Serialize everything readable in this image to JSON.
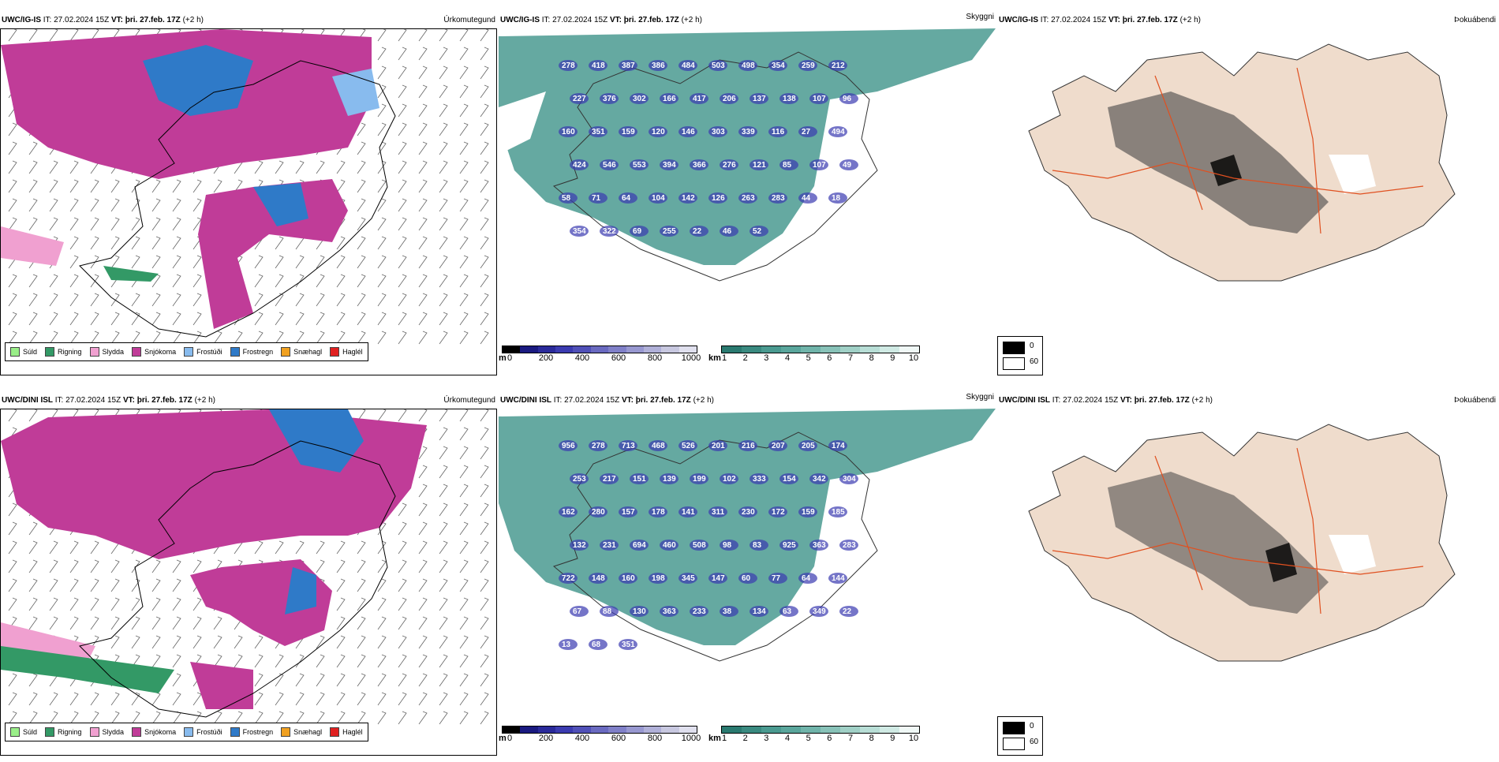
{
  "rows": [
    {
      "model": "UWC/IG-IS",
      "it_label": "IT:",
      "it_value": "27.02.2024 15Z",
      "vt_label": "VT:",
      "vt_value": "þri. 27.feb. 17Z",
      "lead": "(+2 h)",
      "titles": [
        "Úrkomutegund",
        "Skyggni",
        "Þokuábendi"
      ],
      "cloud_labels": [
        "278",
        "418",
        "387",
        "386",
        "484",
        "503",
        "498",
        "354",
        "259",
        "212",
        "227",
        "376",
        "302",
        "166",
        "417",
        "206",
        "137",
        "138",
        "107",
        "96",
        "160",
        "351",
        "159",
        "120",
        "146",
        "303",
        "339",
        "116",
        "27",
        "494",
        "424",
        "546",
        "553",
        "394",
        "366",
        "276",
        "121",
        "85",
        "107",
        "49",
        "58",
        "71",
        "64",
        "104",
        "142",
        "126",
        "263",
        "283",
        "44",
        "18",
        "354",
        "322",
        "69",
        "255",
        "22",
        "46",
        "52"
      ]
    },
    {
      "model": "UWC/DINI ISL",
      "it_label": "IT:",
      "it_value": "27.02.2024 15Z",
      "vt_label": "VT:",
      "vt_value": "þri. 27.feb. 17Z",
      "lead": "(+2 h)",
      "titles": [
        "Úrkomutegund",
        "Skyggni",
        "Þokuábendi"
      ],
      "cloud_labels": [
        "956",
        "278",
        "713",
        "468",
        "526",
        "201",
        "216",
        "207",
        "205",
        "174",
        "253",
        "217",
        "151",
        "139",
        "199",
        "102",
        "333",
        "154",
        "342",
        "304",
        "162",
        "280",
        "157",
        "178",
        "141",
        "311",
        "230",
        "172",
        "159",
        "185",
        "132",
        "231",
        "694",
        "460",
        "508",
        "98",
        "83",
        "925",
        "363",
        "283",
        "722",
        "148",
        "160",
        "198",
        "345",
        "147",
        "60",
        "77",
        "64",
        "144",
        "67",
        "88",
        "130",
        "363",
        "233",
        "38",
        "134",
        "63",
        "349",
        "22",
        "13",
        "68",
        "351"
      ]
    }
  ],
  "precip_legend": [
    {
      "label": "Súld",
      "color": "#99ee88"
    },
    {
      "label": "Rigning",
      "color": "#339966"
    },
    {
      "label": "Slydda",
      "color": "#f0a0d0"
    },
    {
      "label": "Snjókoma",
      "color": "#c03c98"
    },
    {
      "label": "Frostúði",
      "color": "#88bbee"
    },
    {
      "label": "Frostregn",
      "color": "#2f7ac8"
    },
    {
      "label": "Snæhagl",
      "color": "#f0a020"
    },
    {
      "label": "Haglél",
      "color": "#e02020"
    }
  ],
  "cloud_base_bar": {
    "unit": "m",
    "ticks": [
      "0",
      "200",
      "400",
      "600",
      "800",
      "1000"
    ],
    "colors": [
      "#000000",
      "#1a1a80",
      "#2a2a9a",
      "#3b3bb0",
      "#5050b8",
      "#6a6ac0",
      "#8080c8",
      "#9898d0",
      "#b0b0d8",
      "#c8c8e0",
      "#e0e0ee"
    ]
  },
  "visibility_bar": {
    "unit": "km",
    "ticks": [
      "1",
      "2",
      "3",
      "4",
      "5",
      "6",
      "7",
      "8",
      "9",
      "10"
    ],
    "colors": [
      "#2a7a70",
      "#3a8a80",
      "#4a9a90",
      "#5aa69c",
      "#70b4aa",
      "#88c2b8",
      "#a0d0c6",
      "#b8ded6",
      "#d0eae4",
      "#f0f8f6"
    ]
  },
  "fog_legend": [
    {
      "label": "0",
      "color": "#000000"
    },
    {
      "label": "60",
      "color": "#ffffff"
    }
  ]
}
